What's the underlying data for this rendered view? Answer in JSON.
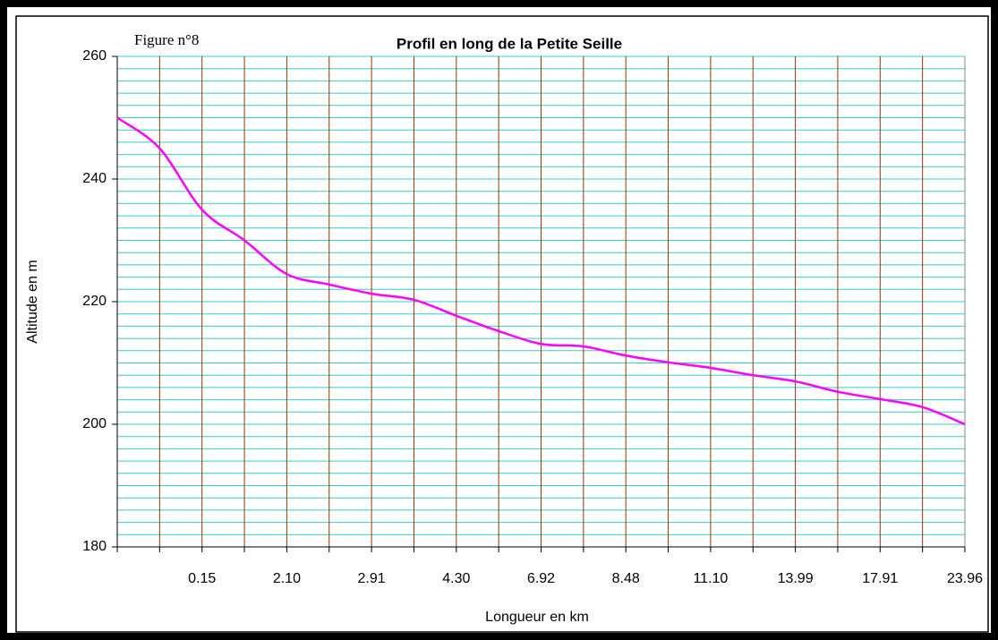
{
  "chart_data": {
    "type": "line",
    "figure_label": "Figure n°8",
    "title": "Profil en long de la Petite Seille",
    "x_label": "Longueur en km",
    "y_label": "Altitude en m",
    "categories": [
      null,
      null,
      "0.15",
      null,
      "2.10",
      null,
      "2.91",
      null,
      "4.30",
      null,
      "6.92",
      null,
      "8.48",
      null,
      "11.10",
      null,
      "13.99",
      null,
      "17.91",
      null,
      "23.96"
    ],
    "series": [
      {
        "name": "Altitude",
        "color": "#ff00ff",
        "values": [
          250,
          245,
          235,
          230,
          224.5,
          222.8,
          221.3,
          220.3,
          217.7,
          215.2,
          213.1,
          212.7,
          211.2,
          210.1,
          209.2,
          208,
          207,
          205.3,
          204.1,
          202.8,
          200
        ]
      }
    ],
    "ylim": [
      180,
      260
    ],
    "yticks": [
      180,
      200,
      220,
      240,
      260
    ],
    "minor_yticks": [
      182,
      184,
      186,
      188,
      190,
      192,
      194,
      196,
      198,
      202,
      204,
      206,
      208,
      210,
      212,
      214,
      216,
      218,
      222,
      224,
      226,
      228,
      230,
      232,
      234,
      236,
      238,
      242,
      244,
      246,
      248,
      250,
      252,
      254,
      256,
      258
    ],
    "grid_color": "#33cccc",
    "xgrid_color": "#993300",
    "grid": true,
    "xgrid": true
  }
}
